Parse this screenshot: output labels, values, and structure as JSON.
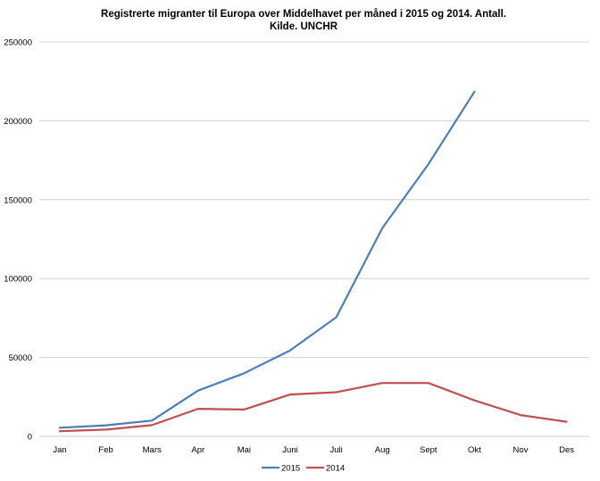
{
  "chart_data": {
    "type": "line",
    "title_line1": "Registrerte migranter til Europa over Middelhavet per måned i 2015 og 2014. Antall.",
    "title_line2": "Kilde. UNCHR",
    "categories": [
      "Jan",
      "Feb",
      "Mars",
      "Apr",
      "Mai",
      "Juni",
      "Juli",
      "Aug",
      "Sept",
      "Okt",
      "Nov",
      "Des"
    ],
    "y_ticks": [
      "0",
      "50000",
      "100000",
      "150000",
      "200000",
      "250000"
    ],
    "ylim": [
      0,
      250000
    ],
    "grid": true,
    "legend_position": "bottom",
    "series": [
      {
        "name": "2015",
        "color": "#4a7ebb",
        "values": [
          5500,
          7000,
          10000,
          29000,
          40000,
          54500,
          75500,
          132000,
          172500,
          218500,
          null,
          null
        ]
      },
      {
        "name": "2014",
        "color": "#c0504d",
        "values": [
          3300,
          4300,
          7100,
          17500,
          17000,
          26500,
          28000,
          33800,
          33800,
          22800,
          13500,
          9300
        ]
      }
    ]
  }
}
